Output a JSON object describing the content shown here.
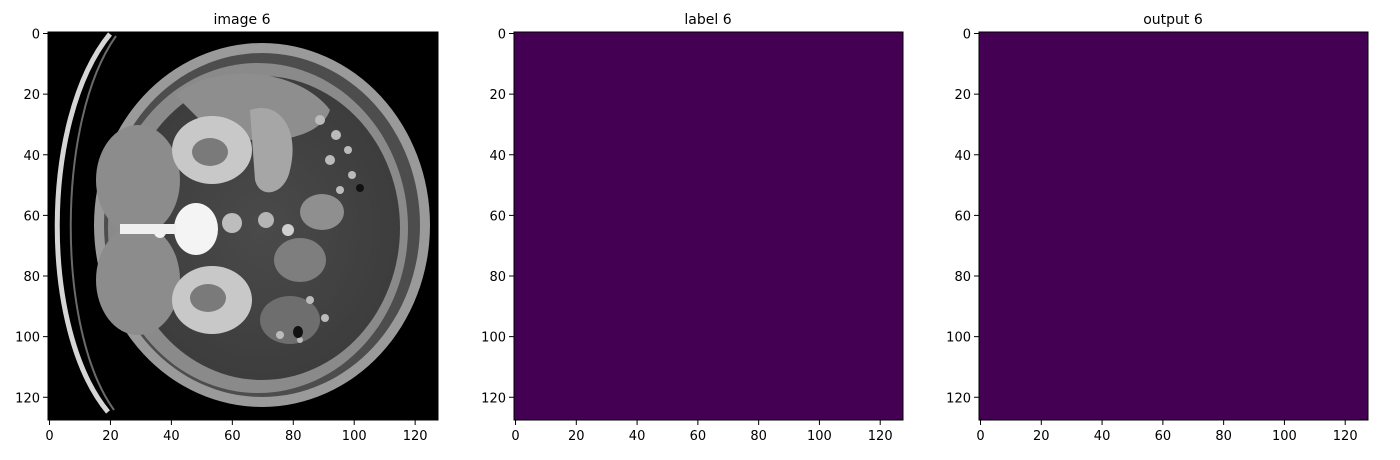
{
  "panels": [
    {
      "id": "image",
      "title": "image 6",
      "kind": "ct-scan",
      "x_ticks": [
        "0",
        "20",
        "40",
        "60",
        "80",
        "100",
        "120"
      ],
      "y_ticks": [
        "0",
        "20",
        "40",
        "60",
        "80",
        "100",
        "120"
      ]
    },
    {
      "id": "label",
      "title": "label 6",
      "kind": "mask",
      "fill": "#440154",
      "x_ticks": [
        "0",
        "20",
        "40",
        "60",
        "80",
        "100",
        "120"
      ],
      "y_ticks": [
        "0",
        "20",
        "40",
        "60",
        "80",
        "100",
        "120"
      ]
    },
    {
      "id": "output",
      "title": "output 6",
      "kind": "mask",
      "fill": "#440154",
      "x_ticks": [
        "0",
        "20",
        "40",
        "60",
        "80",
        "100",
        "120"
      ],
      "y_ticks": [
        "0",
        "20",
        "40",
        "60",
        "80",
        "100",
        "120"
      ]
    }
  ],
  "colors": {
    "mask": "#440154",
    "ct_background": "#000000",
    "axis": "#000000"
  }
}
